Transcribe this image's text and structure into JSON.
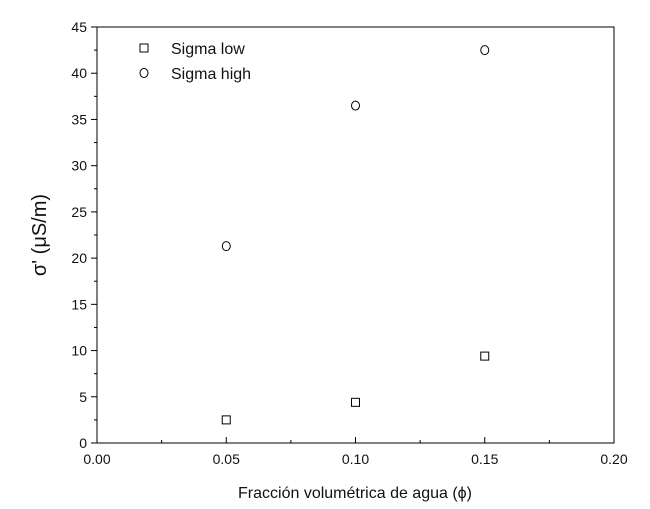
{
  "chart_data": {
    "type": "scatter",
    "xlabel": "Fracción volumétrica de agua (ϕ)",
    "ylabel": "σ' (μS/m)",
    "xlim": [
      0.0,
      0.2
    ],
    "ylim": [
      0,
      45
    ],
    "xticks": [
      "0.00",
      "0.05",
      "0.10",
      "0.15",
      "0.20"
    ],
    "xtick_values": [
      0.0,
      0.05,
      0.1,
      0.15,
      0.2
    ],
    "yticks": [
      "0",
      "5",
      "10",
      "15",
      "20",
      "25",
      "30",
      "35",
      "40",
      "45"
    ],
    "ytick_values": [
      0,
      5,
      10,
      15,
      20,
      25,
      30,
      35,
      40,
      45
    ],
    "grid": false,
    "legend_position": "top-left",
    "series": [
      {
        "name": "Sigma low",
        "marker": "square",
        "x": [
          0.05,
          0.1,
          0.15
        ],
        "y": [
          2.5,
          4.4,
          9.4
        ]
      },
      {
        "name": "Sigma high",
        "marker": "circle",
        "x": [
          0.05,
          0.1,
          0.15
        ],
        "y": [
          21.3,
          36.5,
          42.5
        ]
      }
    ]
  }
}
